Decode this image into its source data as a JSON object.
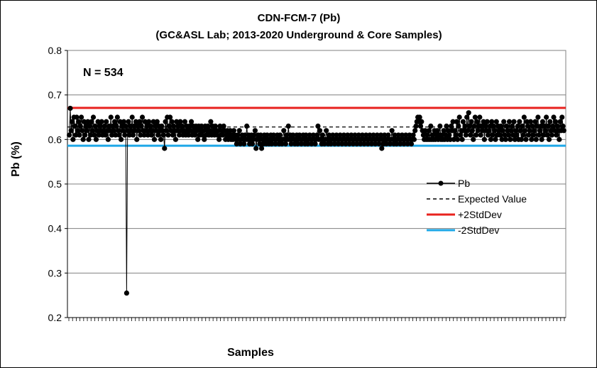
{
  "chart_data": {
    "type": "line",
    "title": "CDN-FCM-7 (Pb)",
    "subtitle": "(GC&ASL Lab; 2013-2020 Underground & Core Samples)",
    "xlabel": "Samples",
    "ylabel": "Pb (%)",
    "annotation": "N = 534",
    "ylim": [
      0.2,
      0.8
    ],
    "yticks": [
      "0.8",
      "0.7",
      "0.6",
      "0.5",
      "0.4",
      "0.3",
      "0.2"
    ],
    "n_points": 534,
    "expected_value": 0.628,
    "plus_2sd": 0.671,
    "minus_2sd": 0.586,
    "series": [
      {
        "name": "Pb",
        "values": [
          0.61,
          0.67,
          0.62,
          0.64,
          0.6,
          0.65,
          0.63,
          0.61,
          0.65,
          0.62,
          0.64,
          0.61,
          0.63,
          0.65,
          0.62,
          0.6,
          0.64,
          0.61,
          0.63,
          0.62,
          0.64,
          0.6,
          0.63,
          0.61,
          0.64,
          0.62,
          0.65,
          0.61,
          0.63,
          0.6,
          0.62,
          0.64,
          0.61,
          0.63,
          0.62,
          0.64,
          0.61,
          0.62,
          0.63,
          0.61,
          0.64,
          0.62,
          0.6,
          0.63,
          0.62,
          0.65,
          0.61,
          0.63,
          0.62,
          0.64,
          0.61,
          0.63,
          0.65,
          0.62,
          0.61,
          0.64,
          0.6,
          0.63,
          0.62,
          0.64,
          0.61,
          0.63,
          0.255,
          0.62,
          0.64,
          0.61,
          0.63,
          0.62,
          0.65,
          0.61,
          0.63,
          0.62,
          0.64,
          0.6,
          0.63,
          0.62,
          0.64,
          0.61,
          0.63,
          0.65,
          0.62,
          0.61,
          0.64,
          0.62,
          0.63,
          0.61,
          0.64,
          0.62,
          0.63,
          0.61,
          0.62,
          0.64,
          0.6,
          0.63,
          0.62,
          0.64,
          0.61,
          0.63,
          0.62,
          0.6,
          0.63,
          0.62,
          0.61,
          0.58,
          0.64,
          0.62,
          0.65,
          0.61,
          0.63,
          0.65,
          0.62,
          0.64,
          0.61,
          0.63,
          0.62,
          0.6,
          0.64,
          0.62,
          0.63,
          0.61,
          0.64,
          0.62,
          0.63,
          0.61,
          0.62,
          0.64,
          0.61,
          0.63,
          0.62,
          0.61,
          0.63,
          0.62,
          0.64,
          0.61,
          0.63,
          0.62,
          0.61,
          0.63,
          0.62,
          0.6,
          0.63,
          0.61,
          0.62,
          0.63,
          0.61,
          0.62,
          0.6,
          0.63,
          0.61,
          0.62,
          0.63,
          0.61,
          0.62,
          0.64,
          0.61,
          0.63,
          0.62,
          0.61,
          0.63,
          0.62,
          0.61,
          0.62,
          0.6,
          0.63,
          0.61,
          0.62,
          0.61,
          0.63,
          0.62,
          0.6,
          0.61,
          0.62,
          0.6,
          0.61,
          0.62,
          0.6,
          0.61,
          0.6,
          0.62,
          0.61,
          0.6,
          0.59,
          0.61,
          0.6,
          0.62,
          0.59,
          0.6,
          0.61,
          0.6,
          0.59,
          0.61,
          0.6,
          0.63,
          0.6,
          0.61,
          0.59,
          0.6,
          0.61,
          0.59,
          0.6,
          0.61,
          0.62,
          0.58,
          0.6,
          0.61,
          0.6,
          0.59,
          0.61,
          0.58,
          0.6,
          0.59,
          0.61,
          0.6,
          0.59,
          0.61,
          0.6,
          0.59,
          0.6,
          0.61,
          0.59,
          0.6,
          0.61,
          0.6,
          0.59,
          0.6,
          0.61,
          0.6,
          0.59,
          0.61,
          0.6,
          0.59,
          0.6,
          0.62,
          0.6,
          0.59,
          0.61,
          0.6,
          0.63,
          0.6,
          0.61,
          0.59,
          0.6,
          0.61,
          0.6,
          0.59,
          0.6,
          0.61,
          0.59,
          0.6,
          0.61,
          0.6,
          0.59,
          0.6,
          0.61,
          0.6,
          0.59,
          0.61,
          0.6,
          0.59,
          0.6,
          0.61,
          0.6,
          0.59,
          0.6,
          0.61,
          0.6,
          0.59,
          0.6,
          0.61,
          0.63,
          0.6,
          0.62,
          0.6,
          0.59,
          0.61,
          0.6,
          0.59,
          0.6,
          0.62,
          0.6,
          0.59,
          0.61,
          0.6,
          0.59,
          0.6,
          0.61,
          0.6,
          0.59,
          0.6,
          0.61,
          0.6,
          0.59,
          0.6,
          0.61,
          0.6,
          0.59,
          0.6,
          0.61,
          0.6,
          0.59,
          0.6,
          0.61,
          0.6,
          0.59,
          0.6,
          0.61,
          0.6,
          0.59,
          0.6,
          0.61,
          0.6,
          0.59,
          0.6,
          0.61,
          0.6,
          0.59,
          0.6,
          0.61,
          0.6,
          0.59,
          0.6,
          0.61,
          0.6,
          0.59,
          0.6,
          0.61,
          0.6,
          0.59,
          0.6,
          0.61,
          0.6,
          0.59,
          0.6,
          0.61,
          0.6,
          0.59,
          0.6,
          0.61,
          0.58,
          0.6,
          0.59,
          0.61,
          0.6,
          0.59,
          0.6,
          0.61,
          0.6,
          0.59,
          0.6,
          0.62,
          0.6,
          0.59,
          0.61,
          0.6,
          0.59,
          0.6,
          0.61,
          0.6,
          0.59,
          0.6,
          0.61,
          0.6,
          0.59,
          0.6,
          0.61,
          0.6,
          0.59,
          0.6,
          0.61,
          0.6,
          0.59,
          0.6,
          0.61,
          0.6,
          0.62,
          0.63,
          0.64,
          0.65,
          0.64,
          0.65,
          0.63,
          0.64,
          0.62,
          0.61,
          0.6,
          0.62,
          0.6,
          0.61,
          0.6,
          0.62,
          0.6,
          0.63,
          0.6,
          0.61,
          0.6,
          0.62,
          0.6,
          0.61,
          0.62,
          0.6,
          0.61,
          0.63,
          0.6,
          0.61,
          0.6,
          0.62,
          0.6,
          0.61,
          0.63,
          0.6,
          0.62,
          0.61,
          0.6,
          0.63,
          0.62,
          0.64,
          0.6,
          0.62,
          0.61,
          0.64,
          0.6,
          0.63,
          0.65,
          0.61,
          0.62,
          0.6,
          0.64,
          0.62,
          0.63,
          0.61,
          0.65,
          0.62,
          0.66,
          0.63,
          0.61,
          0.64,
          0.62,
          0.6,
          0.63,
          0.65,
          0.61,
          0.64,
          0.62,
          0.63,
          0.65,
          0.61,
          0.63,
          0.62,
          0.64,
          0.6,
          0.63,
          0.62,
          0.64,
          0.61,
          0.62,
          0.63,
          0.6,
          0.64,
          0.61,
          0.63,
          0.62,
          0.6,
          0.64,
          0.61,
          0.63,
          0.62,
          0.61,
          0.63,
          0.6,
          0.62,
          0.64,
          0.61,
          0.6,
          0.63,
          0.62,
          0.61,
          0.64,
          0.6,
          0.62,
          0.63,
          0.61,
          0.64,
          0.6,
          0.62,
          0.61,
          0.63,
          0.6,
          0.64,
          0.62,
          0.6,
          0.63,
          0.61,
          0.65,
          0.62,
          0.6,
          0.64,
          0.63,
          0.61,
          0.62,
          0.64,
          0.6,
          0.63,
          0.61,
          0.62,
          0.64,
          0.6,
          0.63,
          0.65,
          0.61,
          0.62,
          0.63,
          0.6,
          0.64,
          0.61,
          0.63,
          0.62,
          0.65,
          0.61,
          0.63,
          0.6,
          0.64,
          0.62,
          0.61,
          0.63,
          0.65,
          0.62,
          0.64,
          0.61,
          0.63,
          0.62,
          0.6,
          0.64,
          0.62,
          0.65,
          0.63,
          0.62
        ]
      }
    ],
    "legend": [
      {
        "label": "Pb",
        "color": "#000000",
        "style": "line-marker"
      },
      {
        "label": "Expected Value",
        "color": "#000000",
        "style": "dashed"
      },
      {
        "label": "+2StdDev",
        "color": "#e8221e",
        "style": "solid"
      },
      {
        "label": "-2StdDev",
        "color": "#1ea8e8",
        "style": "solid"
      }
    ],
    "legend_position": "right",
    "grid": true,
    "colors": {
      "plus": "#e8221e",
      "minus": "#1ea8e8",
      "series": "#000000",
      "grid": "#808080"
    }
  }
}
